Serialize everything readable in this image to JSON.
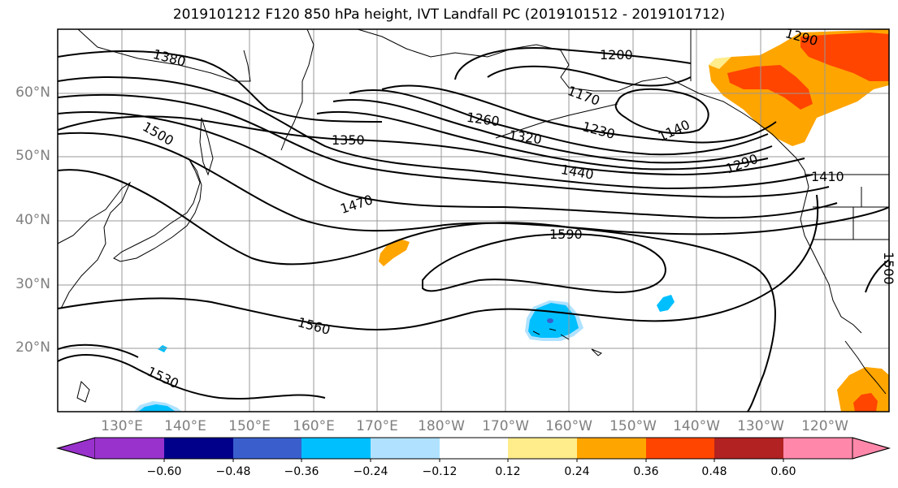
{
  "title": "2019101212 F120 850 hPa height, IVT Landfall PC (2019101512 - 2019101712)",
  "lat_labels": [
    "60°N",
    "50°N",
    "40°N",
    "30°N",
    "20°N"
  ],
  "lon_labels": [
    "130°E",
    "140°E",
    "150°E",
    "160°E",
    "170°E",
    "180°W",
    "170°W",
    "160°W",
    "150°W",
    "140°W",
    "130°W",
    "120°W"
  ],
  "contour_labels": [
    "1380",
    "1200",
    "1290",
    "1170",
    "1260",
    "1230",
    "1140",
    "1350",
    "1320",
    "1290",
    "1500",
    "1440",
    "1410",
    "1470",
    "1590",
    "1500",
    "1560",
    "1530"
  ],
  "colorbar": {
    "ticks": [
      "−0.60",
      "−0.48",
      "−0.36",
      "−0.24",
      "−0.12",
      "0.12",
      "0.24",
      "0.36",
      "0.48",
      "0.60"
    ],
    "colors": [
      "#9932cc",
      "#00008b",
      "#3a5fcd",
      "#00bfff",
      "#b0e2ff",
      "#ffffff",
      "#ffec8b",
      "#ffa500",
      "#ff4500",
      "#b22222",
      "#ff88aa"
    ]
  }
}
